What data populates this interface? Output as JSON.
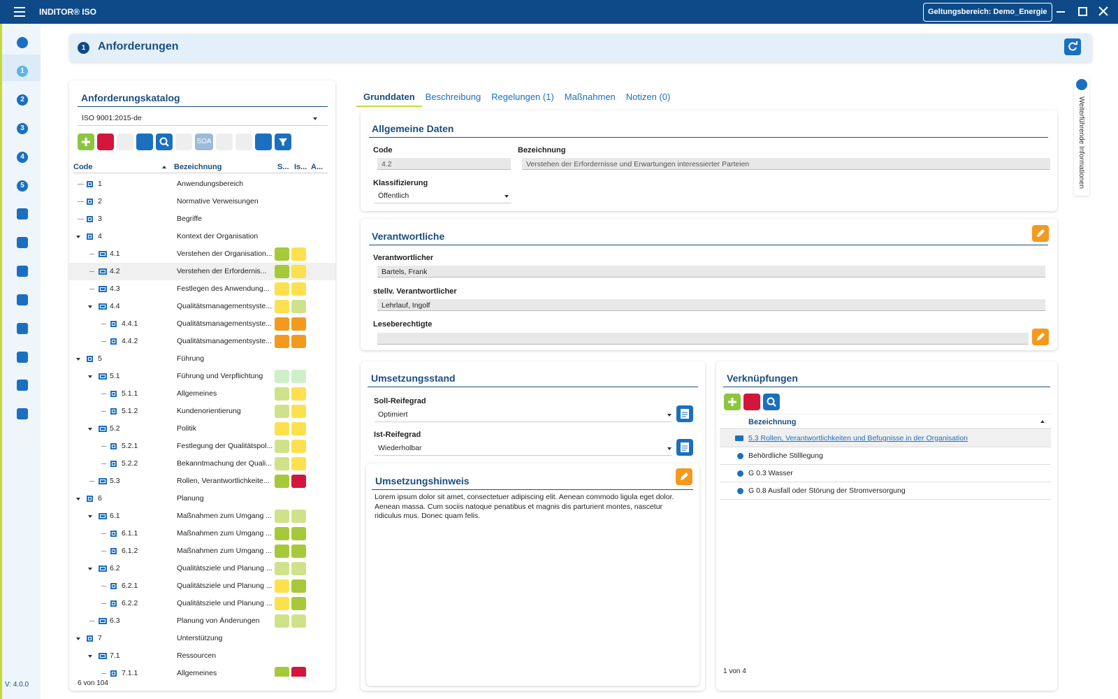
{
  "app": {
    "title": "INDITOR® ISO",
    "scope": "Geltungsbereich: Demo_Energie",
    "version": "V: 4.0.0"
  },
  "sidebar": {
    "steps": [
      "1",
      "2",
      "3",
      "4",
      "5"
    ]
  },
  "header": {
    "badge": "1",
    "title": "Anforderungen"
  },
  "catalog": {
    "title": "Anforderungskatalog",
    "select": "ISO 9001:2015-de",
    "toolbar_text": "SOA",
    "columns": [
      "Code",
      "Bezeichnung",
      "S...",
      "Is...",
      "A..."
    ],
    "rows": [
      {
        "code": "1",
        "label": "Anwendungsbereich",
        "level": 0
      },
      {
        "code": "2",
        "label": "Normative Verweisungen",
        "level": 0
      },
      {
        "code": "3",
        "label": "Begriffe",
        "level": 0
      },
      {
        "code": "4",
        "label": "Kontext der Organisation",
        "level": 0,
        "expanded": true
      },
      {
        "code": "4.1",
        "label": "Verstehen der Organisation...",
        "level": 1,
        "colors": [
          "#a6c93a",
          "#fde04e"
        ]
      },
      {
        "code": "4.2",
        "label": "Verstehen der Erfordernis...",
        "level": 1,
        "colors": [
          "#a6c93a",
          "#fde04e"
        ],
        "selected": true
      },
      {
        "code": "4.3",
        "label": "Festlegen des Anwendung...",
        "level": 1,
        "colors": [
          "#fde04e",
          "#fde04e"
        ]
      },
      {
        "code": "4.4",
        "label": "Qualitätsmanagementsyste...",
        "level": 1,
        "expanded": true,
        "colors": [
          "#fde04e",
          "#cfe28a"
        ]
      },
      {
        "code": "4.4.1",
        "label": "Qualitätsmanagementsyste...",
        "level": 2,
        "colors": [
          "#f39a1e",
          "#f39a1e"
        ]
      },
      {
        "code": "4.4.2",
        "label": "Qualitätsmanagementsyste...",
        "level": 2,
        "colors": [
          "#f39a1e",
          "#f39a1e"
        ]
      },
      {
        "code": "5",
        "label": "Führung",
        "level": 0,
        "expanded": true
      },
      {
        "code": "5.1",
        "label": "Führung und Verpflichtung",
        "level": 1,
        "expanded": true,
        "colors": [
          "#cdf0c8",
          "#cdf0c8"
        ]
      },
      {
        "code": "5.1.1",
        "label": "Allgemeines",
        "level": 2,
        "colors": [
          "#cfe28a",
          "#fde04e"
        ]
      },
      {
        "code": "5.1.2",
        "label": "Kundenorientierung",
        "level": 2,
        "colors": [
          "#cfe28a",
          "#fde04e"
        ]
      },
      {
        "code": "5.2",
        "label": "Politik",
        "level": 1,
        "expanded": true,
        "colors": [
          "#fde04e",
          "#fde04e"
        ]
      },
      {
        "code": "5.2.1",
        "label": "Festlegung der Qualitätspol...",
        "level": 2,
        "colors": [
          "#cfe28a",
          "#fde04e"
        ]
      },
      {
        "code": "5.2.2",
        "label": "Bekanntmachung der Quali...",
        "level": 2,
        "colors": [
          "#cfe28a",
          "#fde04e"
        ]
      },
      {
        "code": "5.3",
        "label": "Rollen, Verantwortlichkeite...",
        "level": 1,
        "colors": [
          "#a6c93a",
          "#d3173c"
        ]
      },
      {
        "code": "6",
        "label": "Planung",
        "level": 0,
        "expanded": true
      },
      {
        "code": "6.1",
        "label": "Maßnahmen zum Umgang ...",
        "level": 1,
        "expanded": true,
        "colors": [
          "#cfe28a",
          "#cfe28a"
        ]
      },
      {
        "code": "6.1.1",
        "label": "Maßnahmen zum Umgang ...",
        "level": 2,
        "colors": [
          "#a6c93a",
          "#a6c93a"
        ]
      },
      {
        "code": "6.1.2",
        "label": "Maßnahmen zum Umgang ...",
        "level": 2,
        "colors": [
          "#a6c93a",
          "#a6c93a"
        ]
      },
      {
        "code": "6.2",
        "label": "Qualitätsziele und Planung ...",
        "level": 1,
        "expanded": true,
        "colors": [
          "#cfe28a",
          "#cfe28a"
        ]
      },
      {
        "code": "6.2.1",
        "label": "Qualitätsziele und Planung ...",
        "level": 2,
        "colors": [
          "#fde04e",
          "#a6c93a"
        ]
      },
      {
        "code": "6.2.2",
        "label": "Qualitätsziele und Planung ...",
        "level": 2,
        "colors": [
          "#fde04e",
          "#a6c93a"
        ]
      },
      {
        "code": "6.3",
        "label": "Planung von Änderungen",
        "level": 1,
        "colors": [
          "#cfe28a",
          "#cfe28a"
        ]
      },
      {
        "code": "7",
        "label": "Unterstützung",
        "level": 0,
        "expanded": true
      },
      {
        "code": "7.1",
        "label": "Ressourcen",
        "level": 1,
        "expanded": true
      },
      {
        "code": "7.1.1",
        "label": "Allgemeines",
        "level": 2,
        "colors": [
          "#a6c93a",
          "#d3173c"
        ]
      }
    ],
    "footer": "6 von 104"
  },
  "tabs": [
    "Grunddaten",
    "Beschreibung",
    "Regelungen (1)",
    "Maßnahmen",
    "Notizen (0)"
  ],
  "general": {
    "title": "Allgemeine Daten",
    "code_label": "Code",
    "code": "4.2",
    "name_label": "Bezeichnung",
    "name": "Verstehen der Erfordernisse und Erwartungen interessierter Parteien",
    "class_label": "Klassifizierung",
    "class": "Öffentlich"
  },
  "responsible": {
    "title": "Verantwortliche",
    "owner_label": "Verantwortlicher",
    "owner": "Bartels, Frank",
    "deputy_label": "stellv. Verantwortlicher",
    "deputy": "Lehrlauf, Ingolf",
    "readers_label": "Leseberechtigte"
  },
  "status": {
    "title": "Umsetzungsstand",
    "target_label": "Soll-Reifegrad",
    "target": "Optimiert",
    "actual_label": "Ist-Reifegrad",
    "actual": "Wiederholbar",
    "hint_title": "Umsetzungshinweis",
    "hint": "Lorem ipsum dolor sit amet, consectetuer adipiscing elit. Aenean commodo ligula eget dolor. Aenean massa. Cum sociis natoque penatibus et magnis dis parturient montes, nascetur ridiculus mus. Donec quam felis."
  },
  "links": {
    "title": "Verknüpfungen",
    "column": "Bezeichnung",
    "rows": [
      "5.3 Rollen, Verantwortlichkeiten und Befugnisse in der Organisation",
      "Behördliche Stilllegung",
      "G 0.3 Wasser",
      "G 0.8 Ausfall oder Störung der Stromversorgung"
    ],
    "footer": "1 von 4"
  },
  "info_panel": "Weiterführende Informationen"
}
